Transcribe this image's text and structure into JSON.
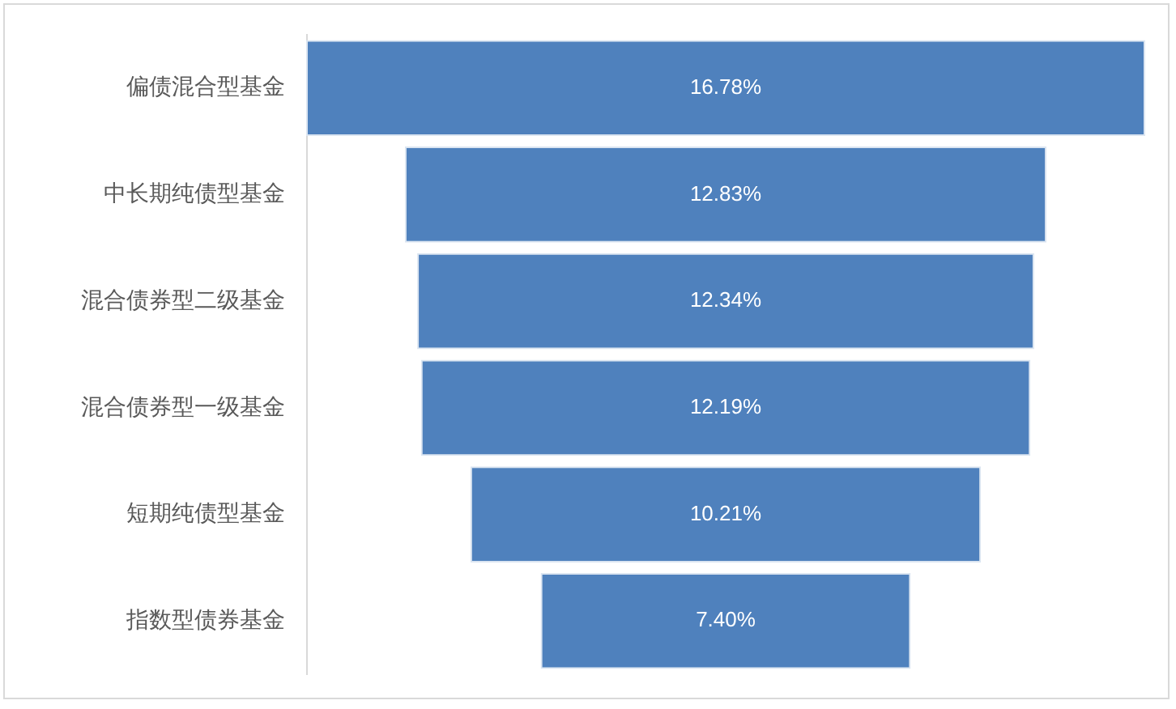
{
  "chart_data": {
    "type": "other",
    "categories": [
      "偏债混合型基金",
      "中长期纯债型基金",
      "混合债券型二级基金",
      "混合债券型一级基金",
      "短期纯债型基金",
      "指数型债券基金"
    ],
    "values": [
      16.78,
      12.83,
      12.34,
      12.19,
      10.21,
      7.4
    ],
    "value_labels": [
      "16.78%",
      "12.83%",
      "12.34%",
      "12.19%",
      "10.21%",
      "7.40%"
    ],
    "color": "#4f81bd"
  }
}
